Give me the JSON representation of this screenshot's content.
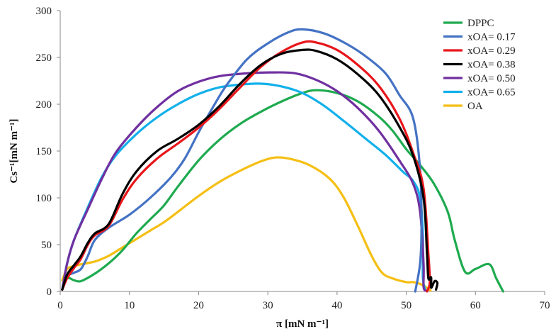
{
  "chart_data": {
    "type": "line",
    "title": "",
    "xlabel": "π [mN m⁻¹]",
    "ylabel": "Cs⁻¹[mN m⁻¹]",
    "xlim": [
      0,
      70
    ],
    "ylim": [
      0,
      300
    ],
    "xticks": [
      "0",
      "10",
      "20",
      "30",
      "40",
      "50",
      "60",
      "70"
    ],
    "yticks": [
      "0",
      "50",
      "100",
      "150",
      "200",
      "250",
      "300"
    ],
    "grid": false,
    "legend_position": "top-right",
    "series": [
      {
        "name": "DPPC",
        "color": "#1eaa4f",
        "points": [
          [
            0.3,
            2
          ],
          [
            1,
            14
          ],
          [
            2,
            12
          ],
          [
            3,
            11
          ],
          [
            5,
            19
          ],
          [
            7,
            30
          ],
          [
            9,
            44
          ],
          [
            11,
            62
          ],
          [
            13,
            77
          ],
          [
            15,
            92
          ],
          [
            17,
            112
          ],
          [
            20,
            140
          ],
          [
            23,
            162
          ],
          [
            26,
            179
          ],
          [
            29,
            192
          ],
          [
            32,
            203
          ],
          [
            35,
            212
          ],
          [
            37,
            215
          ],
          [
            40,
            212
          ],
          [
            43,
            203
          ],
          [
            46,
            187
          ],
          [
            48,
            172
          ],
          [
            50,
            152
          ],
          [
            52,
            135
          ],
          [
            54,
            115
          ],
          [
            56,
            85
          ],
          [
            57,
            55
          ],
          [
            58.5,
            21
          ],
          [
            60,
            24
          ],
          [
            62,
            29
          ],
          [
            63,
            14
          ],
          [
            64,
            0
          ]
        ]
      },
      {
        "name": "xOA= 0.17",
        "color": "#4472c4",
        "points": [
          [
            0.3,
            2
          ],
          [
            1,
            16
          ],
          [
            2,
            20
          ],
          [
            3,
            24
          ],
          [
            4,
            38
          ],
          [
            5,
            55
          ],
          [
            7,
            68
          ],
          [
            10,
            82
          ],
          [
            13,
            100
          ],
          [
            16,
            122
          ],
          [
            18,
            142
          ],
          [
            20,
            170
          ],
          [
            22,
            196
          ],
          [
            24,
            220
          ],
          [
            27,
            248
          ],
          [
            30,
            265
          ],
          [
            33,
            277
          ],
          [
            35,
            280
          ],
          [
            38,
            276
          ],
          [
            41,
            266
          ],
          [
            44,
            252
          ],
          [
            47,
            233
          ],
          [
            49,
            210
          ],
          [
            51,
            185
          ],
          [
            52,
            130
          ],
          [
            52.2,
            70
          ],
          [
            52,
            30
          ],
          [
            51.3,
            0
          ]
        ]
      },
      {
        "name": "xOA= 0.29",
        "color": "#e8161b",
        "points": [
          [
            0.3,
            2
          ],
          [
            1,
            14
          ],
          [
            2,
            25
          ],
          [
            3,
            35
          ],
          [
            4,
            50
          ],
          [
            5,
            60
          ],
          [
            7,
            70
          ],
          [
            9,
            98
          ],
          [
            11,
            120
          ],
          [
            14,
            142
          ],
          [
            17,
            158
          ],
          [
            20,
            175
          ],
          [
            23,
            195
          ],
          [
            26,
            218
          ],
          [
            29,
            240
          ],
          [
            32,
            256
          ],
          [
            35,
            266
          ],
          [
            37,
            266
          ],
          [
            40,
            258
          ],
          [
            43,
            242
          ],
          [
            46,
            220
          ],
          [
            49,
            185
          ],
          [
            51,
            148
          ],
          [
            52.5,
            110
          ],
          [
            53.2,
            40
          ],
          [
            53.4,
            10
          ],
          [
            53,
            0
          ]
        ]
      },
      {
        "name": "xOA= 0.38",
        "color": "#000000",
        "points": [
          [
            0.3,
            2
          ],
          [
            1,
            18
          ],
          [
            2,
            28
          ],
          [
            3,
            38
          ],
          [
            4,
            52
          ],
          [
            5,
            62
          ],
          [
            7,
            72
          ],
          [
            9,
            104
          ],
          [
            11,
            128
          ],
          [
            14,
            150
          ],
          [
            17,
            163
          ],
          [
            20,
            178
          ],
          [
            23,
            198
          ],
          [
            26,
            222
          ],
          [
            29,
            242
          ],
          [
            32,
            254
          ],
          [
            35,
            258
          ],
          [
            37,
            257
          ],
          [
            40,
            248
          ],
          [
            43,
            232
          ],
          [
            46,
            210
          ],
          [
            49,
            176
          ],
          [
            51,
            145
          ],
          [
            52.5,
            100
          ],
          [
            53,
            40
          ],
          [
            53.2,
            14
          ],
          [
            53.6,
            15
          ],
          [
            53.6,
            4
          ],
          [
            54.1,
            11
          ],
          [
            54.5,
            9
          ],
          [
            54.3,
            2
          ]
        ]
      },
      {
        "name": "xOA= 0.50",
        "color": "#7030a0",
        "points": [
          [
            0.3,
            2
          ],
          [
            1,
            30
          ],
          [
            2,
            55
          ],
          [
            4,
            88
          ],
          [
            6,
            120
          ],
          [
            8,
            148
          ],
          [
            11,
            175
          ],
          [
            14,
            197
          ],
          [
            17,
            214
          ],
          [
            20,
            224
          ],
          [
            23,
            230
          ],
          [
            27,
            233
          ],
          [
            31,
            234
          ],
          [
            34,
            233
          ],
          [
            37,
            226
          ],
          [
            40,
            214
          ],
          [
            43,
            196
          ],
          [
            46,
            172
          ],
          [
            49,
            140
          ],
          [
            51,
            115
          ],
          [
            52,
            85
          ],
          [
            52.5,
            30
          ],
          [
            52.5,
            5
          ],
          [
            52.8,
            1
          ]
        ]
      },
      {
        "name": "xOA= 0.65",
        "color": "#12b0eb",
        "points": [
          [
            0.3,
            2
          ],
          [
            1,
            30
          ],
          [
            2,
            55
          ],
          [
            4,
            90
          ],
          [
            6,
            122
          ],
          [
            8,
            145
          ],
          [
            11,
            168
          ],
          [
            14,
            186
          ],
          [
            17,
            200
          ],
          [
            20,
            211
          ],
          [
            23,
            218
          ],
          [
            26,
            221
          ],
          [
            29,
            222
          ],
          [
            32,
            219
          ],
          [
            35,
            212
          ],
          [
            38,
            199
          ],
          [
            41,
            182
          ],
          [
            44,
            164
          ],
          [
            47,
            146
          ],
          [
            49.5,
            128
          ],
          [
            51,
            118
          ],
          [
            52,
            100
          ],
          [
            52.4,
            60
          ],
          [
            52.4,
            15
          ],
          [
            52.8,
            1
          ]
        ]
      },
      {
        "name": "OA",
        "color": "#f5bf14",
        "points": [
          [
            0.3,
            12
          ],
          [
            1,
            24
          ],
          [
            2,
            27
          ],
          [
            3,
            29
          ],
          [
            5,
            32
          ],
          [
            7,
            38
          ],
          [
            9,
            47
          ],
          [
            11,
            56
          ],
          [
            13,
            65
          ],
          [
            15,
            74
          ],
          [
            17,
            85
          ],
          [
            20,
            102
          ],
          [
            23,
            117
          ],
          [
            26,
            129
          ],
          [
            29,
            139
          ],
          [
            31,
            143
          ],
          [
            33,
            142
          ],
          [
            36,
            135
          ],
          [
            39,
            120
          ],
          [
            41,
            100
          ],
          [
            43,
            70
          ],
          [
            45,
            38
          ],
          [
            46.5,
            20
          ],
          [
            48,
            14
          ],
          [
            50,
            10
          ],
          [
            51,
            10
          ],
          [
            52,
            8
          ],
          [
            53,
            4
          ],
          [
            53.5,
            1
          ]
        ]
      }
    ]
  }
}
